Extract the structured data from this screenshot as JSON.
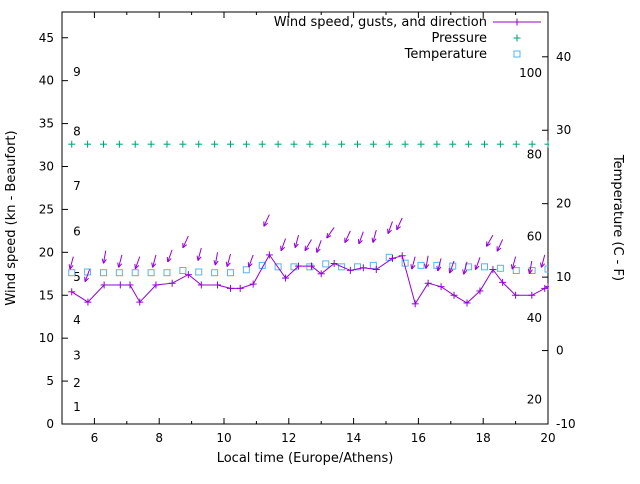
{
  "chart_data": {
    "type": "line",
    "title": "",
    "xlabel": "Local time (Europe/Athens)",
    "ylabel_left": "Wind speed (kn - Beaufort)",
    "ylabel_right": "Temperature (C - F)",
    "legend": [
      {
        "label": "Wind speed, gusts, and direction",
        "color": "#9400d3",
        "marker": "plus-line"
      },
      {
        "label": "Pressure",
        "color": "#009e73",
        "marker": "plus"
      },
      {
        "label": "Temperature",
        "color": "#56b4e9",
        "marker": "open-square"
      }
    ],
    "colors": {
      "wind": "#9400d3",
      "pressure": "#009e73",
      "temperature": "#56b4e9",
      "axis": "#000000",
      "background": "#ffffff"
    },
    "axes": {
      "x": {
        "min": 5,
        "max": 20,
        "major_ticks": [
          6,
          8,
          10,
          12,
          14,
          16,
          18,
          20
        ],
        "minor_ticks": [
          5,
          7,
          9,
          11,
          13,
          15,
          17,
          19
        ]
      },
      "y_left": {
        "min": 0,
        "max": 48,
        "ticks": [
          0,
          5,
          10,
          15,
          20,
          25,
          30,
          35,
          40,
          45
        ]
      },
      "y_right": {
        "min": -10,
        "max": 46.1,
        "ticks": [
          -10,
          0,
          10,
          20,
          30,
          40
        ]
      },
      "beaufort_labels": [
        {
          "label": "1",
          "kn": 2.0
        },
        {
          "label": "2",
          "kn": 4.8
        },
        {
          "label": "3",
          "kn": 8.0
        },
        {
          "label": "4",
          "kn": 12.1
        },
        {
          "label": "5",
          "kn": 17.1
        },
        {
          "label": "6",
          "kn": 22.4
        },
        {
          "label": "7",
          "kn": 27.7
        },
        {
          "label": "8",
          "kn": 34.1
        },
        {
          "label": "9",
          "kn": 41.0
        }
      ],
      "fahrenheit_labels": [
        {
          "label": "20",
          "f": 20
        },
        {
          "label": "40",
          "f": 40
        },
        {
          "label": "60",
          "f": 60
        },
        {
          "label": "80",
          "f": 80
        },
        {
          "label": "100",
          "f": 100
        }
      ]
    },
    "series": {
      "wind_speed_kn": {
        "x": [
          5.3,
          5.8,
          6.3,
          6.8,
          7.1,
          7.4,
          7.9,
          8.4,
          8.9,
          9.3,
          9.8,
          10.2,
          10.5,
          10.9,
          11.4,
          11.9,
          12.3,
          12.7,
          13.0,
          13.4,
          13.9,
          14.3,
          14.7,
          15.2,
          15.5,
          15.9,
          16.3,
          16.7,
          17.1,
          17.5,
          17.9,
          18.3,
          18.6,
          19.0,
          19.5,
          19.9,
          20.0
        ],
        "y": [
          15.4,
          14.2,
          16.2,
          16.2,
          16.2,
          14.2,
          16.2,
          16.4,
          17.4,
          16.2,
          16.2,
          15.8,
          15.8,
          16.3,
          19.7,
          17.0,
          18.4,
          18.4,
          17.5,
          18.7,
          17.9,
          18.2,
          18.0,
          19.3,
          19.6,
          14.0,
          16.4,
          16.0,
          15.0,
          14.1,
          15.5,
          18.0,
          16.5,
          15.0,
          15.0,
          15.8,
          16.0
        ]
      },
      "gusts_kn": {
        "x": [
          5.35,
          5.85,
          6.35,
          6.85,
          7.4,
          7.9,
          8.4,
          8.9,
          9.3,
          9.8,
          10.2,
          10.9,
          11.4,
          11.9,
          12.3,
          12.7,
          13.0,
          13.4,
          13.9,
          14.3,
          14.7,
          15.2,
          15.5,
          15.9,
          16.3,
          16.7,
          17.1,
          17.5,
          17.9,
          18.3,
          18.6,
          19.0,
          19.5,
          19.9
        ],
        "y": [
          19.5,
          18.0,
          20.2,
          19.7,
          19.5,
          19.7,
          20.3,
          21.9,
          20.5,
          20.0,
          19.8,
          19.7,
          24.4,
          21.6,
          22.0,
          21.5,
          21.4,
          22.9,
          22.5,
          22.4,
          22.6,
          23.6,
          24.0,
          19.5,
          19.6,
          19.3,
          19.0,
          18.9,
          19.4,
          22.0,
          21.5,
          19.5,
          19.0,
          19.7
        ],
        "direction_deg": [
          195,
          200,
          190,
          195,
          200,
          195,
          200,
          205,
          195,
          190,
          195,
          200,
          205,
          200,
          195,
          210,
          200,
          215,
          205,
          200,
          195,
          200,
          205,
          195,
          190,
          195,
          200,
          195,
          200,
          210,
          205,
          195,
          190,
          195
        ]
      },
      "pressure": {
        "x": [
          5.3,
          5.79,
          6.28,
          6.77,
          7.26,
          7.75,
          8.24,
          8.73,
          9.22,
          9.71,
          10.2,
          10.69,
          11.18,
          11.67,
          12.16,
          12.65,
          13.14,
          13.63,
          14.12,
          14.61,
          15.1,
          15.59,
          16.08,
          16.57,
          17.06,
          17.55,
          18.04,
          18.53,
          19.02,
          19.51,
          20.0
        ],
        "y_left_axis": 32.6,
        "note": "flat line; no pressure scale shown on screen"
      },
      "temperature_c": {
        "x": [
          5.3,
          5.79,
          6.28,
          6.77,
          7.26,
          7.75,
          8.24,
          8.73,
          9.22,
          9.71,
          10.2,
          10.69,
          11.18,
          11.67,
          12.16,
          12.65,
          13.14,
          13.63,
          14.12,
          14.61,
          15.1,
          15.59,
          16.08,
          16.57,
          17.06,
          17.55,
          18.04,
          18.53,
          19.02,
          19.51,
          20.0
        ],
        "y": [
          10.6,
          10.7,
          10.6,
          10.6,
          10.6,
          10.6,
          10.6,
          10.9,
          10.7,
          10.6,
          10.6,
          11.0,
          11.6,
          11.4,
          11.4,
          11.4,
          11.8,
          11.4,
          11.4,
          11.6,
          12.7,
          11.9,
          11.6,
          11.6,
          11.5,
          11.4,
          11.4,
          11.2,
          10.9,
          10.9,
          11.1
        ]
      }
    }
  }
}
